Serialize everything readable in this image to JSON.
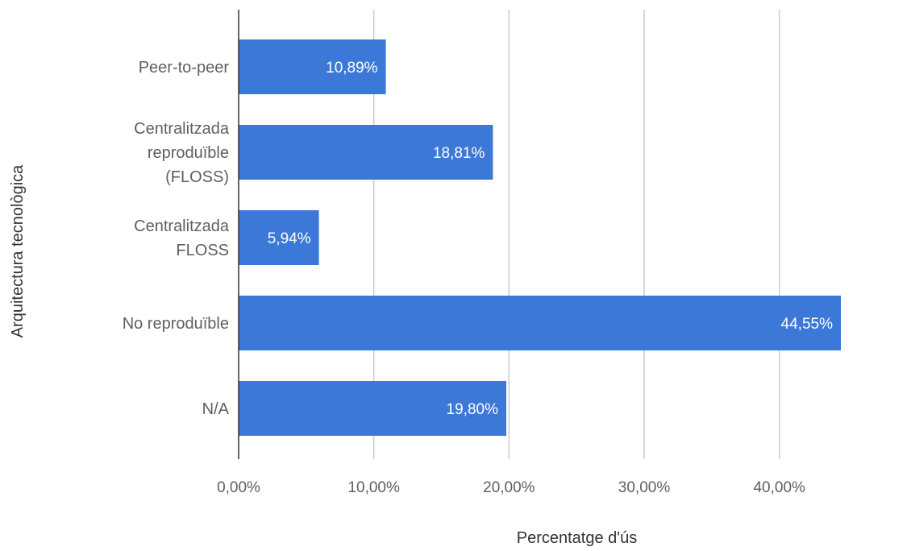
{
  "chart_data": {
    "type": "bar",
    "orientation": "horizontal",
    "xlabel": "Percentatge d'ús",
    "ylabel": "Arquitectura tecnològica",
    "xlim": [
      0,
      45
    ],
    "xticks": [
      0,
      10,
      20,
      30,
      40
    ],
    "xtick_labels": [
      "0,00%",
      "10,00%",
      "20,00%",
      "30,00%",
      "40,00%"
    ],
    "grid": true,
    "legend": "none",
    "bar_color": "#3c78d8",
    "categories": [
      [
        "Peer-to-peer"
      ],
      [
        "Centralitzada",
        "reproduïble",
        "(FLOSS)"
      ],
      [
        "Centralitzada",
        "FLOSS"
      ],
      [
        "No reproduïble"
      ],
      [
        "N/A"
      ]
    ],
    "values": [
      10.89,
      18.81,
      5.94,
      44.55,
      19.8
    ],
    "data_labels": [
      "10,89%",
      "18,81%",
      "5,94%",
      "44,55%",
      "19,80%"
    ]
  }
}
